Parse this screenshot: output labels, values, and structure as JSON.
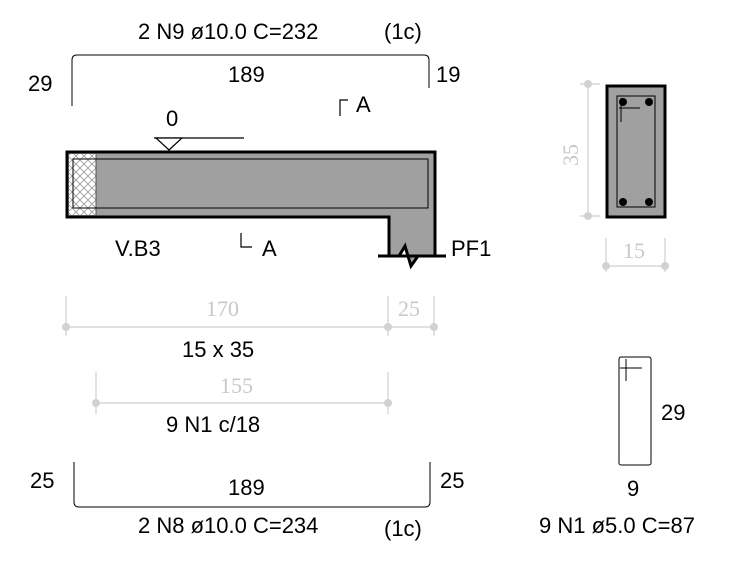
{
  "top_rebar": {
    "label": "2 N9 ø10.0 C=232",
    "layer": "(1c)",
    "left_hook": "29",
    "length": "189",
    "right_hook": "19"
  },
  "beam": {
    "name": "V.B3",
    "level_mark": "0",
    "section_cut": "A",
    "support": "PF1",
    "section_size": "15 x 35"
  },
  "beam_dims": {
    "span": "170",
    "support_width": "25",
    "stirrup_zone": "155"
  },
  "stirrups": {
    "spacing_label": "9 N1 c/18",
    "detail_label": "9 N1 ø5.0 C=87",
    "detail_height": "29",
    "detail_width": "9"
  },
  "bottom_rebar": {
    "label": "2 N8 ø10.0 C=234",
    "layer": "(1c)",
    "left_hook": "25",
    "length": "189",
    "right_hook": "25"
  },
  "cross_section": {
    "height": "35",
    "width": "15"
  },
  "colors": {
    "concrete": "#a0a0a0",
    "dimension": "#cfcfcf",
    "outline": "#000000"
  }
}
